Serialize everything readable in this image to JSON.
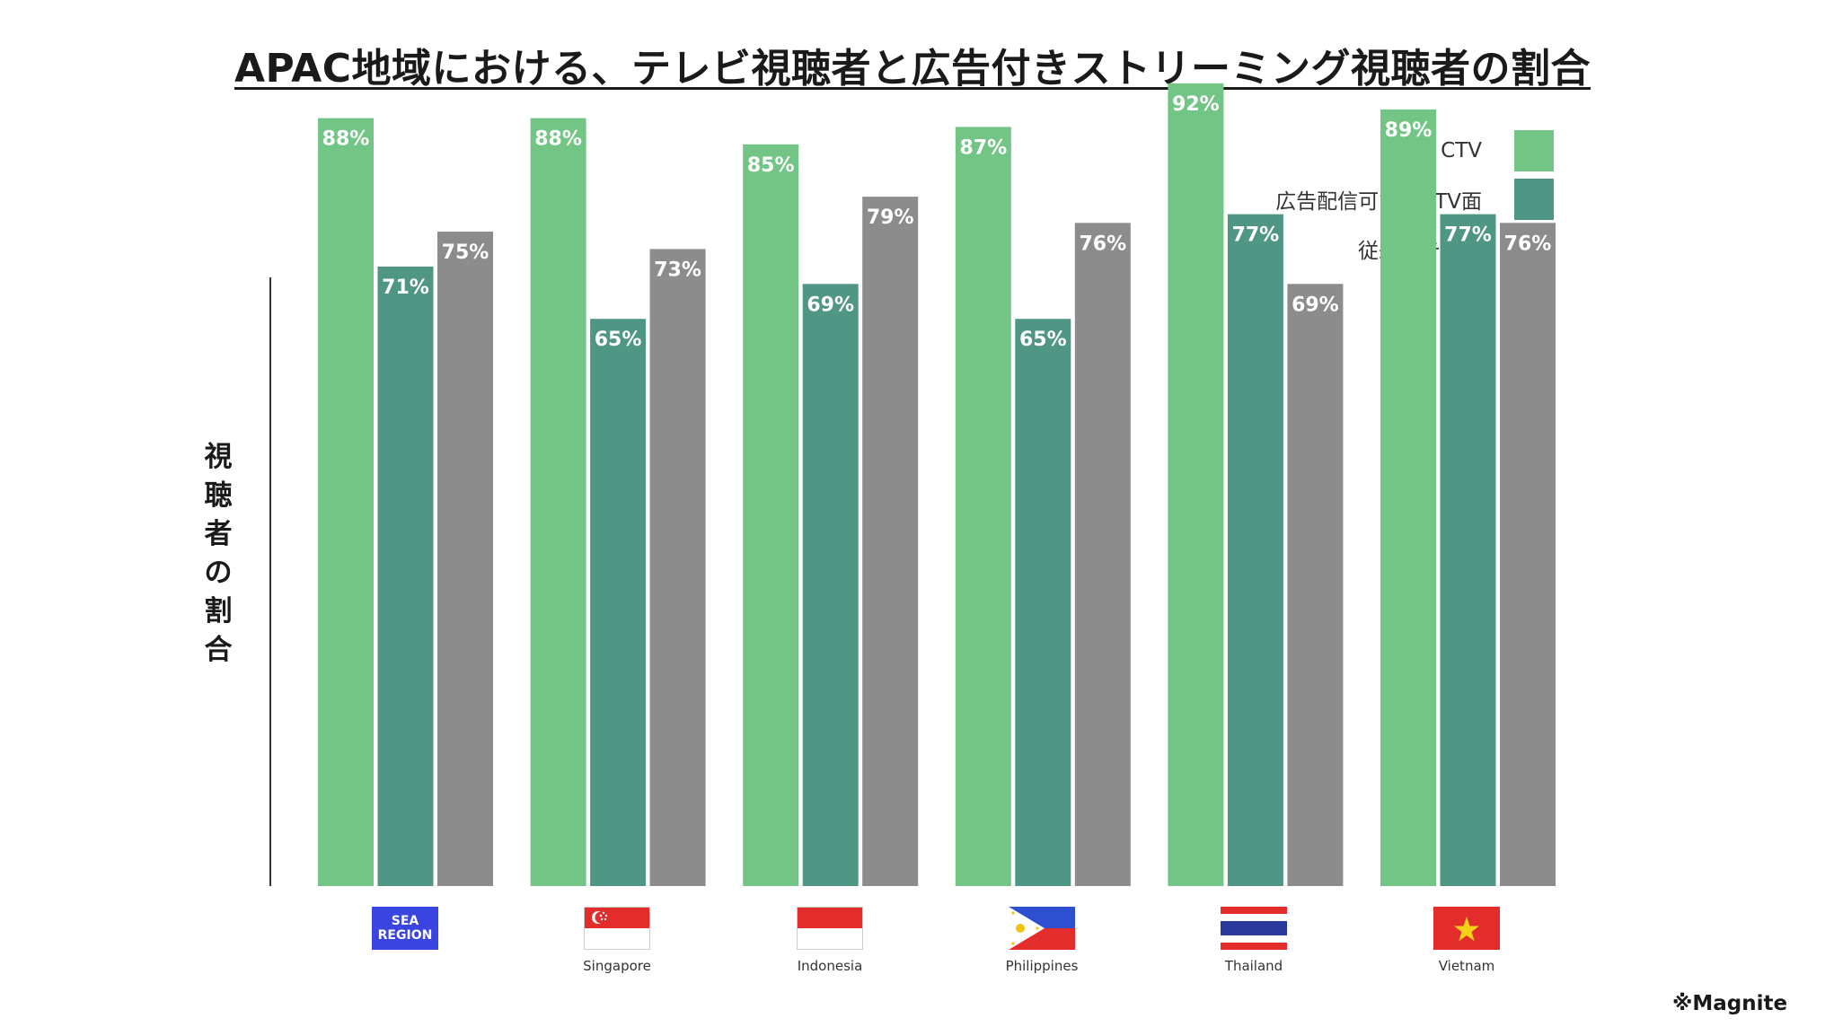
{
  "title": "APAC地域における、テレビ視聴者と広告付きストリーミング視聴者の割合",
  "y_axis_label": [
    "視",
    "聴",
    "者",
    "の",
    "割",
    "合"
  ],
  "source": "※Magnite",
  "colors": {
    "ctv": "#72c585",
    "ad_ctv": "#4f9685",
    "tv": "#8c8c8c"
  },
  "flags": {
    "sea_line1": "SEA",
    "sea_line2": "REGION",
    "icons": [
      "sea-region-flag",
      "singapore-flag-icon",
      "indonesia-flag-icon",
      "philippines-flag-icon",
      "thailand-flag-icon",
      "vietnam-flag-icon"
    ]
  },
  "chart_data": {
    "type": "bar",
    "categories": [
      "",
      "Singapore",
      "Indonesia",
      "Philippines",
      "Thailand",
      "Vietnam"
    ],
    "series": [
      {
        "name": "CTV",
        "values": [
          88,
          88,
          85,
          87,
          92,
          89
        ]
      },
      {
        "name": "広告配信可能なCTV面",
        "values": [
          71,
          65,
          69,
          65,
          77,
          77
        ]
      },
      {
        "name": "従来のテレビ",
        "values": [
          75,
          73,
          79,
          76,
          69,
          76
        ]
      }
    ],
    "data_labels": [
      [
        "88%",
        "88%",
        "85%",
        "87%",
        "92%",
        "89%"
      ],
      [
        "71%",
        "65%",
        "69%",
        "65%",
        "77%",
        "77%"
      ],
      [
        "75%",
        "73%",
        "79%",
        "76%",
        "69%",
        "76%"
      ]
    ],
    "ylim": [
      0,
      100
    ],
    "grid": false,
    "legend_position": "top-right",
    "xlabel": "",
    "ylabel": "視聴者の割合"
  }
}
